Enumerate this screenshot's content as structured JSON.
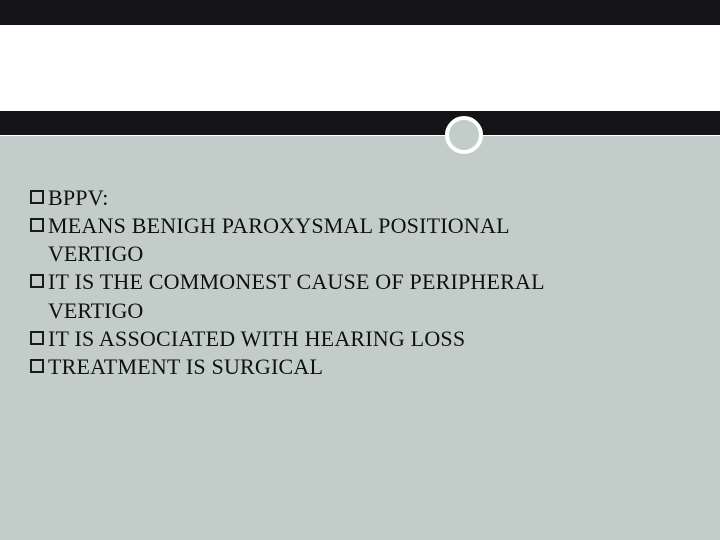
{
  "slide": {
    "background_color": "#c2ccc9",
    "top_band_color": "#141418",
    "strip_color": "#ffffff",
    "circle_border_color": "#ffffff",
    "text_color": "#101010",
    "font_family": "Georgia, Times New Roman, serif",
    "font_size_pt": 16,
    "bullets": [
      {
        "lines": [
          "BPPV:"
        ]
      },
      {
        "lines": [
          "MEANS  BENIGH PAROXYSMAL POSITIONAL",
          "VERTIGO"
        ]
      },
      {
        "lines": [
          "IT IS THE COMMONEST CAUSE OF PERIPHERAL",
          "VERTIGO"
        ]
      },
      {
        "lines": [
          "IT IS ASSOCIATED WITH HEARING LOSS"
        ]
      },
      {
        "lines": [
          "TREATMENT IS SURGICAL"
        ]
      }
    ]
  }
}
